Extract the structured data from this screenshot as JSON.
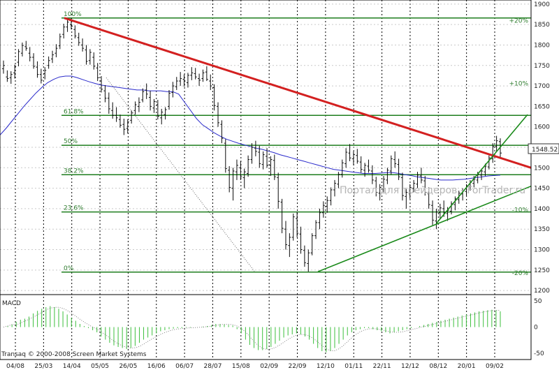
{
  "chart_data": {
    "type": "ohlc",
    "instrument_copyright": "Transaq © 2000-2008 Screen Market Systems",
    "watermark": "Портал для трейдеров - ForTrader.ru",
    "current_price_label": "1548.52",
    "y_ticks": [
      1200,
      1250,
      1300,
      1350,
      1400,
      1450,
      1500,
      1550,
      1600,
      1650,
      1700,
      1750,
      1800,
      1850,
      1900
    ],
    "x_ticks": [
      "04/08",
      "25/03",
      "14/04",
      "05/05",
      "26/05",
      "16/06",
      "06/07",
      "28/07",
      "15/08",
      "02/09",
      "22/09",
      "12/10",
      "01/11",
      "22/11",
      "12/12",
      "08/12",
      "20/01",
      "09/02"
    ],
    "ylim": [
      1190,
      1910
    ],
    "fib_levels": [
      {
        "label": "100%",
        "value": 1866
      },
      {
        "label": "61.8%",
        "value": 1628
      },
      {
        "label": "50%",
        "value": 1555
      },
      {
        "label": "38.2%",
        "value": 1483
      },
      {
        "label": "23.6%",
        "value": 1392
      },
      {
        "label": "0%",
        "value": 1245
      }
    ],
    "pct_labels": [
      {
        "label": "+20%",
        "value": 1860
      },
      {
        "label": "+10%",
        "value": 1706
      },
      {
        "label": "-10%",
        "value": 1397
      },
      {
        "label": "-20%",
        "value": 1243
      }
    ],
    "macd": {
      "label": "MACD",
      "y_ticks": [
        50,
        0,
        -50
      ],
      "ylim": [
        -62,
        62
      ],
      "values": [
        0,
        2,
        5,
        10,
        14,
        16,
        20,
        26,
        31,
        35,
        38,
        40,
        38,
        35,
        30,
        24,
        18,
        12,
        6,
        2,
        -2,
        -6,
        -10,
        -18,
        -24,
        -30,
        -35,
        -38,
        -40,
        -42,
        -40,
        -36,
        -30,
        -24,
        -20,
        -16,
        -12,
        -8,
        -6,
        -4,
        -3,
        -2,
        -2,
        -1,
        -1,
        0,
        0,
        1,
        2,
        4,
        6,
        6,
        5,
        4,
        3,
        -4,
        -12,
        -24,
        -34,
        -40,
        -44,
        -44,
        -42,
        -38,
        -32,
        -26,
        -20,
        -16,
        -14,
        -12,
        -14,
        -18,
        -24,
        -32,
        -40,
        -46,
        -48,
        -46,
        -40,
        -32,
        -24,
        -16,
        -10,
        -6,
        -4,
        -2,
        -2,
        -4,
        -6,
        -8,
        -10,
        -12,
        -10,
        -8,
        -6,
        -4,
        -2,
        0,
        2,
        4,
        6,
        8,
        10,
        12,
        14,
        16,
        18,
        20,
        22,
        24,
        26,
        28,
        30,
        31,
        32,
        33,
        32,
        30
      ]
    },
    "ma": [
      1580,
      1596,
      1614,
      1632,
      1650,
      1666,
      1682,
      1696,
      1708,
      1716,
      1722,
      1724,
      1724,
      1720,
      1715,
      1710,
      1706,
      1702,
      1700,
      1698,
      1696,
      1694,
      1692,
      1690,
      1690,
      1688,
      1688,
      1688,
      1686,
      1686,
      1680,
      1660,
      1640,
      1620,
      1605,
      1595,
      1585,
      1577,
      1570,
      1565,
      1560,
      1556,
      1552,
      1548,
      1545,
      1541,
      1537,
      1532,
      1528,
      1524,
      1520,
      1516,
      1512,
      1508,
      1504,
      1500,
      1496,
      1494,
      1492,
      1490,
      1488,
      1486,
      1486,
      1486,
      1487,
      1488,
      1488,
      1486,
      1483,
      1481,
      1478,
      1476,
      1474,
      1472,
      1470,
      1470,
      1470,
      1471,
      1472,
      1474,
      1476,
      1478,
      1480,
      1481,
      1482
    ],
    "series": [
      {
        "values": [
          [
            1742,
            1762,
            1730,
            1750
          ],
          [
            1722,
            1738,
            1710,
            1718
          ],
          [
            1720,
            1736,
            1705,
            1728
          ],
          [
            1732,
            1752,
            1718,
            1748
          ],
          [
            1758,
            1790,
            1748,
            1784
          ],
          [
            1780,
            1806,
            1772,
            1799
          ],
          [
            1796,
            1810,
            1786,
            1792
          ],
          [
            1780,
            1795,
            1760,
            1770
          ],
          [
            1770,
            1780,
            1742,
            1748
          ],
          [
            1746,
            1760,
            1720,
            1728
          ],
          [
            1728,
            1742,
            1706,
            1714
          ],
          [
            1730,
            1746,
            1716,
            1738
          ],
          [
            1750,
            1772,
            1742,
            1762
          ],
          [
            1766,
            1786,
            1756,
            1776
          ],
          [
            1780,
            1802,
            1770,
            1792
          ],
          [
            1798,
            1828,
            1790,
            1820
          ],
          [
            1826,
            1852,
            1816,
            1844
          ],
          [
            1844,
            1864,
            1832,
            1856
          ],
          [
            1850,
            1866,
            1838,
            1846
          ],
          [
            1838,
            1848,
            1816,
            1822
          ],
          [
            1818,
            1830,
            1798,
            1806
          ],
          [
            1800,
            1816,
            1784,
            1792
          ],
          [
            1788,
            1800,
            1752,
            1760
          ],
          [
            1762,
            1790,
            1752,
            1782
          ],
          [
            1770,
            1782,
            1740,
            1748
          ],
          [
            1744,
            1756,
            1712,
            1720
          ],
          [
            1712,
            1724,
            1684,
            1692
          ],
          [
            1688,
            1702,
            1660,
            1670
          ],
          [
            1670,
            1684,
            1632,
            1644
          ],
          [
            1640,
            1660,
            1620,
            1628
          ],
          [
            1628,
            1648,
            1612,
            1622
          ],
          [
            1618,
            1630,
            1598,
            1604
          ],
          [
            1606,
            1620,
            1580,
            1594
          ],
          [
            1596,
            1618,
            1584,
            1612
          ],
          [
            1616,
            1640,
            1608,
            1634
          ],
          [
            1640,
            1662,
            1630,
            1654
          ],
          [
            1650,
            1672,
            1636,
            1660
          ],
          [
            1666,
            1694,
            1660,
            1686
          ],
          [
            1690,
            1706,
            1668,
            1680
          ],
          [
            1672,
            1688,
            1640,
            1650
          ],
          [
            1646,
            1668,
            1634,
            1662
          ],
          [
            1654,
            1666,
            1618,
            1626
          ],
          [
            1622,
            1644,
            1606,
            1636
          ],
          [
            1630,
            1648,
            1618,
            1642
          ],
          [
            1650,
            1690,
            1642,
            1682
          ],
          [
            1684,
            1710,
            1672,
            1700
          ],
          [
            1698,
            1722,
            1690,
            1712
          ],
          [
            1712,
            1734,
            1700,
            1718
          ],
          [
            1716,
            1728,
            1698,
            1712
          ],
          [
            1708,
            1732,
            1696,
            1726
          ],
          [
            1726,
            1746,
            1714,
            1732
          ],
          [
            1730,
            1744,
            1716,
            1722
          ],
          [
            1718,
            1730,
            1700,
            1714
          ],
          [
            1718,
            1740,
            1710,
            1732
          ],
          [
            1734,
            1748,
            1712,
            1716
          ],
          [
            1712,
            1728,
            1690,
            1700
          ],
          [
            1696,
            1704,
            1640,
            1652
          ],
          [
            1650,
            1660,
            1600,
            1610
          ],
          [
            1606,
            1616,
            1560,
            1572
          ],
          [
            1560,
            1570,
            1488,
            1498
          ],
          [
            1494,
            1504,
            1440,
            1452
          ],
          [
            1450,
            1500,
            1420,
            1492
          ],
          [
            1490,
            1520,
            1470,
            1506
          ],
          [
            1500,
            1516,
            1470,
            1478
          ],
          [
            1476,
            1498,
            1450,
            1490
          ],
          [
            1486,
            1530,
            1478,
            1520
          ],
          [
            1520,
            1560,
            1510,
            1550
          ],
          [
            1548,
            1566,
            1528,
            1540
          ],
          [
            1538,
            1554,
            1500,
            1510
          ],
          [
            1508,
            1540,
            1496,
            1532
          ],
          [
            1528,
            1548,
            1500,
            1506
          ],
          [
            1506,
            1528,
            1480,
            1520
          ],
          [
            1518,
            1532,
            1470,
            1478
          ],
          [
            1476,
            1488,
            1400,
            1418
          ],
          [
            1416,
            1424,
            1340,
            1352
          ],
          [
            1350,
            1370,
            1300,
            1312
          ],
          [
            1310,
            1340,
            1282,
            1330
          ],
          [
            1330,
            1388,
            1322,
            1380
          ],
          [
            1376,
            1392,
            1330,
            1340
          ],
          [
            1338,
            1356,
            1290,
            1300
          ],
          [
            1298,
            1310,
            1258,
            1268
          ],
          [
            1266,
            1300,
            1246,
            1292
          ],
          [
            1292,
            1340,
            1286,
            1334
          ],
          [
            1334,
            1372,
            1326,
            1366
          ],
          [
            1366,
            1400,
            1350,
            1390
          ],
          [
            1390,
            1418,
            1378,
            1408
          ],
          [
            1406,
            1430,
            1390,
            1420
          ],
          [
            1420,
            1452,
            1408,
            1446
          ],
          [
            1446,
            1470,
            1430,
            1462
          ],
          [
            1460,
            1490,
            1450,
            1484
          ],
          [
            1484,
            1520,
            1476,
            1512
          ],
          [
            1510,
            1548,
            1500,
            1538
          ],
          [
            1536,
            1558,
            1516,
            1524
          ],
          [
            1522,
            1540,
            1506,
            1532
          ],
          [
            1530,
            1546,
            1510,
            1516
          ],
          [
            1514,
            1528,
            1488,
            1496
          ],
          [
            1494,
            1512,
            1478,
            1506
          ],
          [
            1504,
            1520,
            1488,
            1494
          ],
          [
            1492,
            1506,
            1460,
            1470
          ],
          [
            1468,
            1478,
            1430,
            1440
          ],
          [
            1438,
            1460,
            1420,
            1452
          ],
          [
            1450,
            1480,
            1440,
            1472
          ],
          [
            1470,
            1500,
            1460,
            1494
          ],
          [
            1492,
            1530,
            1484,
            1522
          ],
          [
            1520,
            1540,
            1500,
            1510
          ],
          [
            1508,
            1522,
            1470,
            1478
          ],
          [
            1476,
            1488,
            1420,
            1432
          ],
          [
            1430,
            1448,
            1400,
            1440
          ],
          [
            1438,
            1460,
            1424,
            1452
          ],
          [
            1450,
            1470,
            1440,
            1462
          ],
          [
            1460,
            1490,
            1450,
            1482
          ],
          [
            1480,
            1500,
            1462,
            1470
          ],
          [
            1468,
            1480,
            1432,
            1440
          ],
          [
            1438,
            1452,
            1400,
            1410
          ],
          [
            1408,
            1420,
            1360,
            1372
          ],
          [
            1370,
            1400,
            1350,
            1392
          ],
          [
            1390,
            1412,
            1376,
            1402
          ],
          [
            1400,
            1420,
            1380,
            1390
          ],
          [
            1388,
            1404,
            1370,
            1396
          ],
          [
            1394,
            1418,
            1386,
            1412
          ],
          [
            1410,
            1430,
            1396,
            1424
          ],
          [
            1422,
            1444,
            1412,
            1438
          ],
          [
            1436,
            1450,
            1420,
            1444
          ],
          [
            1442,
            1460,
            1432,
            1456
          ],
          [
            1454,
            1470,
            1444,
            1464
          ],
          [
            1462,
            1480,
            1452,
            1472
          ],
          [
            1470,
            1490,
            1462,
            1484
          ],
          [
            1482,
            1498,
            1470,
            1492
          ],
          [
            1490,
            1510,
            1480,
            1504
          ],
          [
            1502,
            1530,
            1496,
            1524
          ],
          [
            1522,
            1560,
            1512,
            1552
          ],
          [
            1552,
            1578,
            1540,
            1566
          ],
          [
            1564,
            1572,
            1526,
            1536
          ]
        ]
      }
    ]
  }
}
